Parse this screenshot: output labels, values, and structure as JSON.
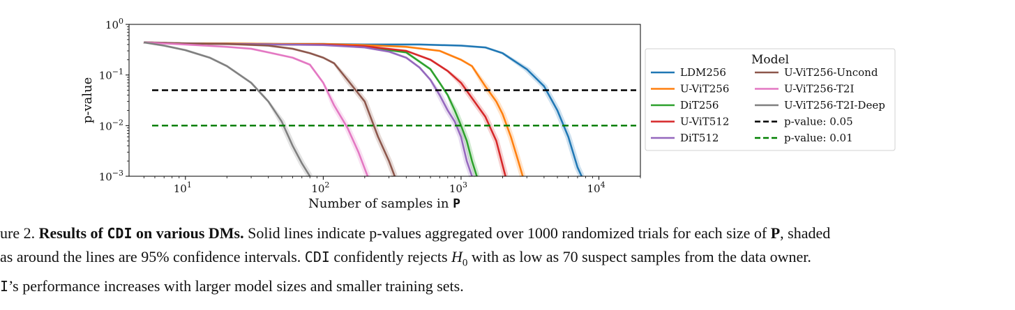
{
  "chart_data": {
    "type": "line",
    "xlabel": "Number of samples in",
    "xlabel_bold": "P",
    "ylabel": "p-value",
    "x_scale": "log",
    "y_scale": "log",
    "xlim": [
      3.9,
      20000
    ],
    "ylim": [
      0.001,
      1
    ],
    "xticks": [
      10,
      100,
      1000,
      10000
    ],
    "xtick_labels": [
      {
        "base": "10",
        "exp": "1"
      },
      {
        "base": "10",
        "exp": "2"
      },
      {
        "base": "10",
        "exp": "3"
      },
      {
        "base": "10",
        "exp": "4"
      }
    ],
    "yticks": [
      0.001,
      0.01,
      0.1,
      1
    ],
    "ytick_labels": [
      {
        "base": "10",
        "exp": "−3"
      },
      {
        "base": "10",
        "exp": "−2"
      },
      {
        "base": "10",
        "exp": "−1"
      },
      {
        "base": "10",
        "exp": "0"
      }
    ],
    "grid": false,
    "legend": {
      "title": "Model",
      "placement": "outside-right",
      "columns": 2
    },
    "series": [
      {
        "name": "LDM256",
        "color": "#1f77b4",
        "style": "solid",
        "x": [
          5,
          10,
          20,
          50,
          100,
          200,
          500,
          1000,
          1500,
          2000,
          3000,
          4000,
          5000,
          6000,
          7000,
          7500
        ],
        "y": [
          0.44,
          0.42,
          0.42,
          0.41,
          0.41,
          0.4,
          0.4,
          0.38,
          0.35,
          0.27,
          0.13,
          0.06,
          0.02,
          0.006,
          0.0015,
          0.001
        ]
      },
      {
        "name": "U-ViT256",
        "color": "#ff7f0e",
        "style": "solid",
        "x": [
          5,
          10,
          20,
          50,
          100,
          200,
          400,
          700,
          1000,
          1200,
          1500,
          1800,
          2000,
          2300,
          2600,
          2800
        ],
        "y": [
          0.44,
          0.42,
          0.42,
          0.41,
          0.41,
          0.39,
          0.36,
          0.3,
          0.2,
          0.15,
          0.06,
          0.03,
          0.017,
          0.006,
          0.002,
          0.001
        ]
      },
      {
        "name": "DiT256",
        "color": "#2ca02c",
        "style": "solid",
        "x": [
          5,
          10,
          20,
          50,
          100,
          200,
          400,
          600,
          700,
          800,
          900,
          1000,
          1100,
          1200,
          1300
        ],
        "y": [
          0.44,
          0.42,
          0.41,
          0.4,
          0.4,
          0.36,
          0.28,
          0.13,
          0.07,
          0.04,
          0.02,
          0.01,
          0.005,
          0.002,
          0.001
        ]
      },
      {
        "name": "U-ViT512",
        "color": "#d62728",
        "style": "solid",
        "x": [
          5,
          10,
          20,
          50,
          100,
          200,
          400,
          600,
          800,
          1000,
          1200,
          1500,
          1800,
          2100
        ],
        "y": [
          0.44,
          0.42,
          0.41,
          0.4,
          0.4,
          0.37,
          0.3,
          0.2,
          0.12,
          0.07,
          0.035,
          0.015,
          0.005,
          0.001
        ]
      },
      {
        "name": "DiT512",
        "color": "#9467bd",
        "style": "solid",
        "x": [
          5,
          10,
          20,
          50,
          100,
          200,
          300,
          400,
          500,
          600,
          700,
          800,
          900,
          1000,
          1100,
          1200
        ],
        "y": [
          0.44,
          0.42,
          0.41,
          0.4,
          0.39,
          0.35,
          0.29,
          0.22,
          0.14,
          0.08,
          0.04,
          0.02,
          0.012,
          0.006,
          0.002,
          0.001
        ]
      },
      {
        "name": "U-ViT256-Uncond",
        "color": "#8c564b",
        "style": "solid",
        "x": [
          5,
          10,
          20,
          40,
          60,
          80,
          100,
          120,
          150,
          200,
          250,
          300,
          330
        ],
        "y": [
          0.44,
          0.42,
          0.41,
          0.38,
          0.33,
          0.27,
          0.22,
          0.17,
          0.08,
          0.03,
          0.006,
          0.002,
          0.001
        ]
      },
      {
        "name": "U-ViT256-T2I",
        "color": "#e377c2",
        "style": "solid",
        "x": [
          5,
          10,
          20,
          30,
          40,
          60,
          80,
          100,
          120,
          150,
          180,
          210
        ],
        "y": [
          0.44,
          0.4,
          0.36,
          0.33,
          0.28,
          0.22,
          0.16,
          0.07,
          0.025,
          0.009,
          0.003,
          0.001
        ]
      },
      {
        "name": "U-ViT256-T2I-Deep",
        "color": "#7f7f7f",
        "style": "solid",
        "x": [
          5,
          7,
          10,
          15,
          20,
          30,
          40,
          50,
          60,
          70,
          80
        ],
        "y": [
          0.44,
          0.38,
          0.31,
          0.22,
          0.15,
          0.07,
          0.03,
          0.012,
          0.004,
          0.0018,
          0.001
        ]
      },
      {
        "name": "p-value: 0.05",
        "color": "#000000",
        "style": "dashed",
        "x": [
          5,
          20000
        ],
        "y": [
          0.05,
          0.05
        ]
      },
      {
        "name": "p-value: 0.01",
        "color": "#008000",
        "style": "dashed",
        "x": [
          5,
          20000
        ],
        "y": [
          0.01,
          0.01
        ]
      }
    ]
  },
  "caption": {
    "line1_prefix": "ure 2. ",
    "line1_bold_a": "Results of ",
    "line1_bold_mono": "CDI",
    "line1_bold_b": " on various DMs.",
    "line1_rest": " Solid lines indicate p-values aggregated over 1000 randomized trials for each size of ",
    "line1_bold_p": "P",
    "line1_end": ", shaded",
    "line2_a": "as around the lines are 95% confidence intervals. ",
    "line2_mono": "CDI",
    "line2_b": " confidently rejects ",
    "line2_h": "H",
    "line2_sub": "0",
    "line2_c": " with as low as 70 suspect samples from the data owner.",
    "line3_mono": "I",
    "line3_rest": "’s performance increases with larger model sizes and smaller training sets."
  }
}
